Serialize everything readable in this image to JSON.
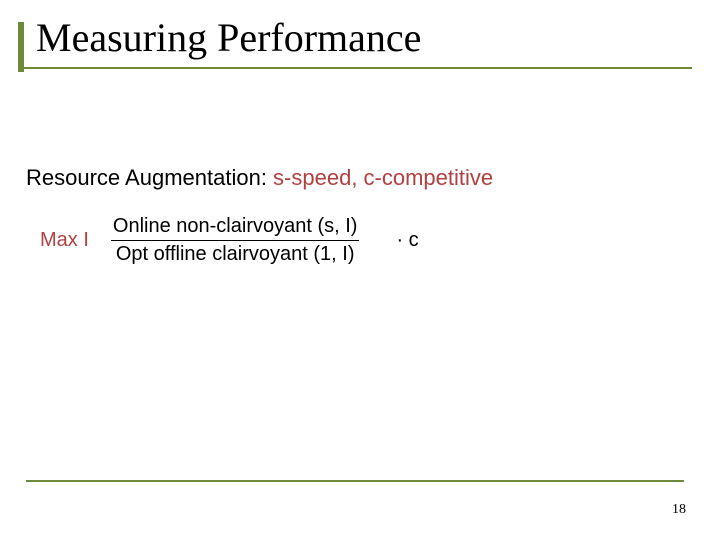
{
  "colors": {
    "accent": "#6d8a3a",
    "text": "#000000",
    "sub_accent": "#b34040",
    "rule": "#6d8a3a",
    "frac_bar": "#000000"
  },
  "title": "Measuring Performance",
  "subtitle": {
    "lead": "Resource Augmentation:",
    "tail": " s-speed, c-competitive"
  },
  "formula": {
    "max": "Max I",
    "numerator": "Online non-clairvoyant (s, I)",
    "denominator": "Opt offline clairvoyant (1, I)",
    "relation": "≤",
    "rhs": "· c"
  },
  "page_number": "18",
  "typography": {
    "title_family": "Times New Roman",
    "title_size_pt": 40,
    "body_family": "Comic Sans MS",
    "body_size_pt": 22,
    "formula_size_pt": 20,
    "pagenum_size_pt": 14
  }
}
